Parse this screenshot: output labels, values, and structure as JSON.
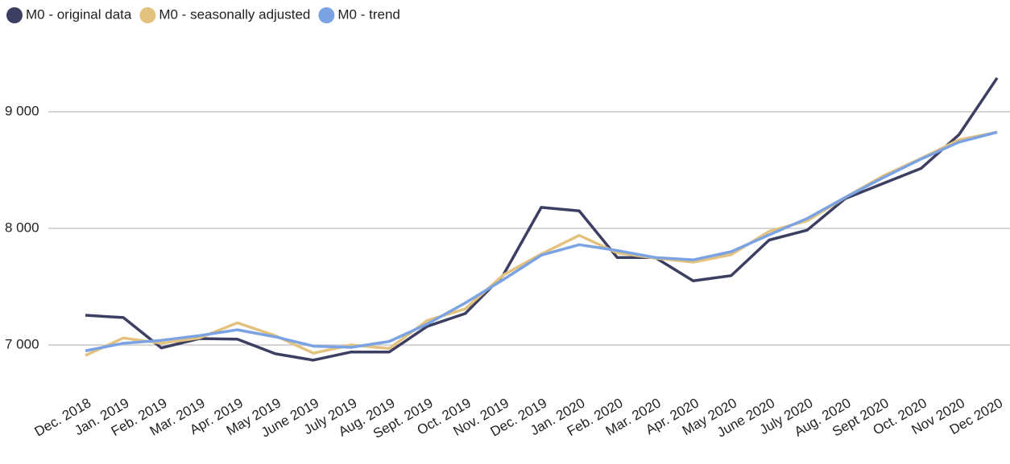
{
  "chart_data": {
    "type": "line",
    "categories": [
      "Dec. 2018",
      "Jan. 2019",
      "Feb. 2019",
      "Mar. 2019",
      "Apr. 2019",
      "May 2019",
      "June 2019",
      "July 2019",
      "Aug. 2019",
      "Sept. 2019",
      "Oct. 2019",
      "Nov. 2019",
      "Dec. 2019",
      "Jan. 2020",
      "Feb. 2020",
      "Mar. 2020",
      "Apr. 2020",
      "May 2020",
      "June 2020",
      "July 2020",
      "Aug. 2020",
      "Sept 2020",
      "Oct. 2020",
      "Nov 2020",
      "Dec 2020"
    ],
    "series": [
      {
        "name": "M0 - original data",
        "color": "#3c3f62",
        "values": [
          7255,
          7235,
          6975,
          7055,
          7050,
          6925,
          6870,
          6940,
          6940,
          7160,
          7270,
          7600,
          8180,
          8150,
          7750,
          7750,
          7550,
          7595,
          7900,
          7985,
          8255,
          8385,
          8515,
          8805,
          9290
        ]
      },
      {
        "name": "M0 - seasonally adjusted",
        "color": "#e3c27f",
        "values": [
          6910,
          7060,
          7015,
          7060,
          7190,
          7080,
          6930,
          7000,
          6970,
          7210,
          7310,
          7600,
          7780,
          7940,
          7790,
          7745,
          7710,
          7775,
          7975,
          8065,
          8265,
          8450,
          8600,
          8760,
          8825
        ]
      },
      {
        "name": "M0 - trend",
        "color": "#7ba3e3",
        "values": [
          6950,
          7015,
          7040,
          7080,
          7130,
          7070,
          6990,
          6980,
          7030,
          7180,
          7360,
          7560,
          7770,
          7860,
          7810,
          7750,
          7730,
          7800,
          7945,
          8085,
          8265,
          8435,
          8595,
          8740,
          8825
        ]
      }
    ],
    "ylim": [
      6700,
      9400
    ],
    "yticks": [
      {
        "value": 7000,
        "label": "7 000"
      },
      {
        "value": 8000,
        "label": "8 000"
      },
      {
        "value": 9000,
        "label": "9 000"
      }
    ],
    "grid": true,
    "legend": "top-left"
  }
}
